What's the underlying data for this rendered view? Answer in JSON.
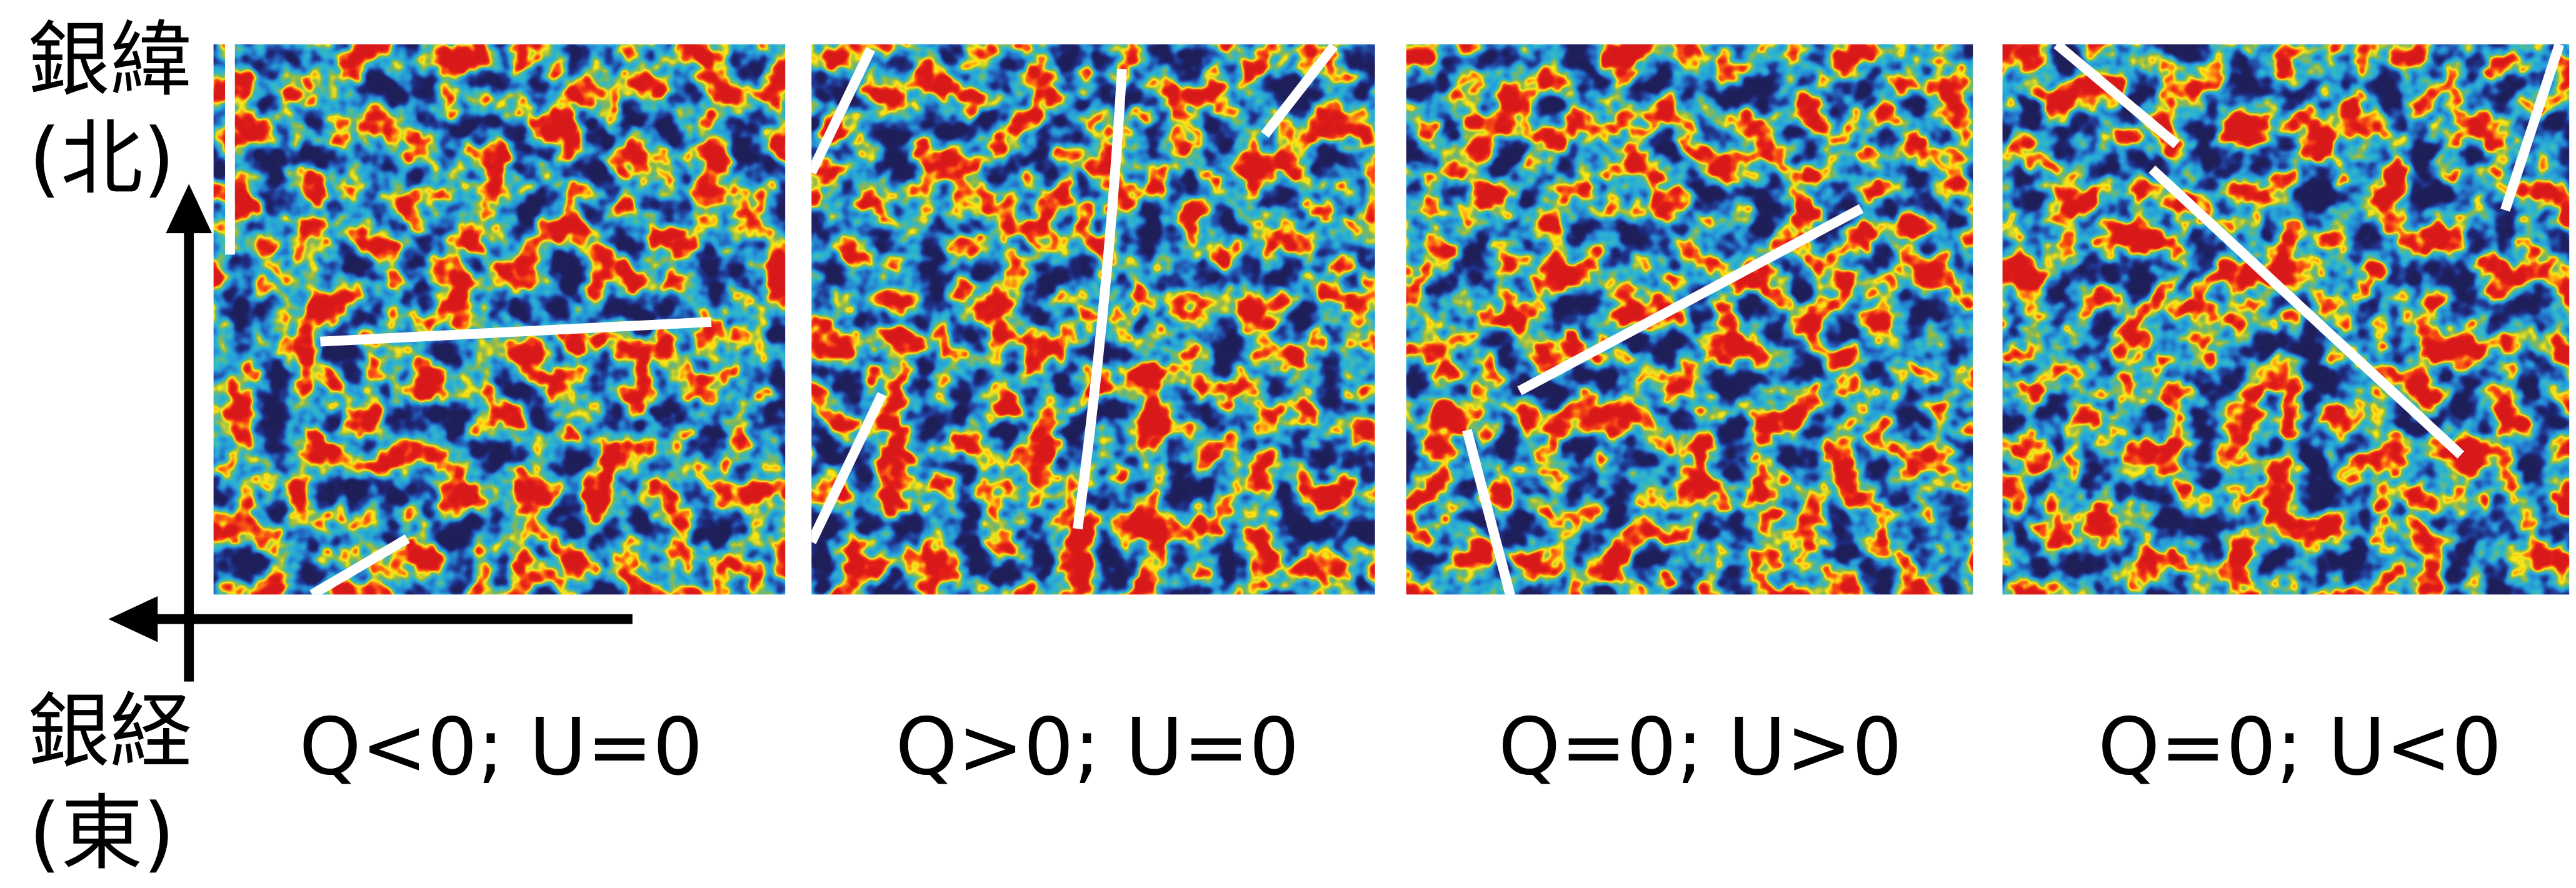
{
  "axis_labels": {
    "latitude": "銀緯",
    "latitude_direction": "(北)",
    "longitude": "銀経",
    "longitude_direction": "(東)"
  },
  "panels": [
    {
      "label": "Q<0; U=0"
    },
    {
      "label": "Q>0; U=0"
    },
    {
      "label": "Q=0; U>0"
    },
    {
      "label": "Q=0; U<0"
    }
  ]
}
